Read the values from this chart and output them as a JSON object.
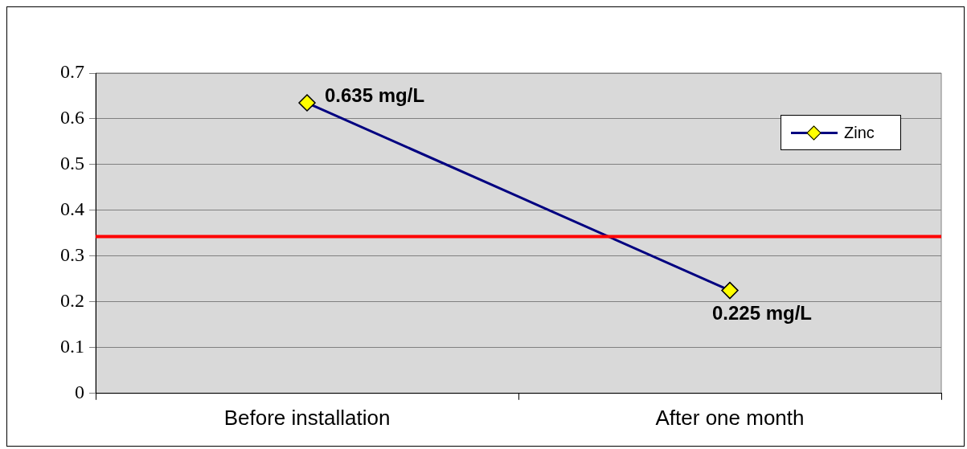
{
  "chart_data": {
    "type": "line",
    "categories": [
      "Before installation",
      "After one month"
    ],
    "series": [
      {
        "name": "Zinc",
        "color": "#000080",
        "values": [
          0.635,
          0.225
        ],
        "value_labels": [
          "0.635 mg/L",
          "0.225 mg/L"
        ]
      }
    ],
    "ylim": [
      0,
      0.7
    ],
    "yticks": [
      0,
      0.1,
      0.2,
      0.3,
      0.4,
      0.5,
      0.6,
      0.7
    ],
    "ref_lines": [
      {
        "axis": "y",
        "value": 0.343,
        "color": "#ff0000"
      }
    ],
    "grid": "y",
    "legend": "top right",
    "marker": "diamond",
    "line_style": "solid"
  }
}
